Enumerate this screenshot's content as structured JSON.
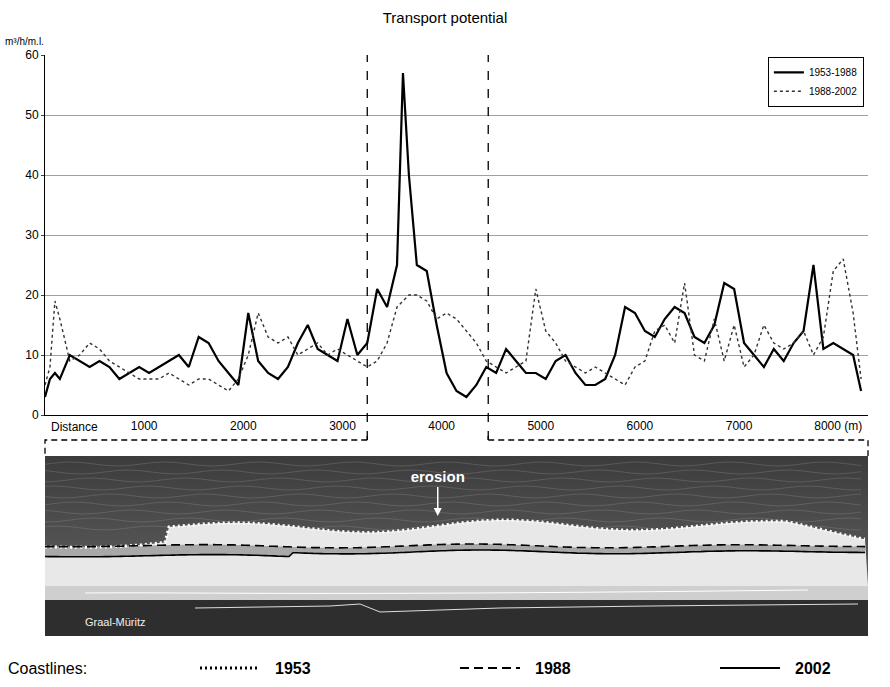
{
  "chart_data": {
    "type": "line",
    "title": "Transport potential",
    "y_label": "m³/h/m.l.",
    "x_label": "Distance",
    "x": [
      0,
      50,
      100,
      150,
      250,
      350,
      450,
      550,
      650,
      750,
      850,
      950,
      1050,
      1150,
      1250,
      1350,
      1450,
      1550,
      1650,
      1750,
      1850,
      1950,
      2050,
      2150,
      2250,
      2350,
      2450,
      2550,
      2650,
      2750,
      2850,
      2950,
      3050,
      3150,
      3250,
      3350,
      3450,
      3550,
      3610,
      3670,
      3750,
      3850,
      3950,
      4050,
      4150,
      4250,
      4350,
      4450,
      4550,
      4650,
      4750,
      4850,
      4950,
      5050,
      5150,
      5250,
      5350,
      5450,
      5550,
      5650,
      5750,
      5850,
      5950,
      6050,
      6150,
      6250,
      6350,
      6450,
      6550,
      6650,
      6750,
      6850,
      6950,
      7050,
      7150,
      7250,
      7350,
      7450,
      7550,
      7650,
      7750,
      7850,
      7950,
      8050,
      8150,
      8230
    ],
    "series": [
      {
        "name": "1953-1988",
        "color": "#000000",
        "line_style": "solid",
        "values": [
          3,
          6,
          7,
          6,
          10,
          9,
          8,
          9,
          8,
          6,
          7,
          8,
          7,
          8,
          9,
          10,
          8,
          13,
          12,
          9,
          7,
          5,
          17,
          9,
          7,
          6,
          8,
          12,
          15,
          11,
          10,
          9,
          16,
          10,
          12,
          21,
          18,
          25,
          57,
          40,
          25,
          24,
          15,
          7,
          4,
          3,
          5,
          8,
          7,
          11,
          9,
          7,
          7,
          6,
          9,
          10,
          7,
          5,
          5,
          6,
          10,
          18,
          17,
          14,
          13,
          16,
          18,
          17,
          13,
          12,
          15,
          22,
          21,
          12,
          10,
          8,
          11,
          9,
          12,
          14,
          25,
          11,
          12,
          11,
          10,
          4
        ]
      },
      {
        "name": "1988-2002",
        "color": "#333333",
        "line_style": "dotted",
        "values": [
          5,
          8,
          19,
          16,
          9,
          10,
          12,
          11,
          9,
          8,
          7,
          6,
          6,
          6,
          7,
          6,
          5,
          6,
          6,
          5,
          4,
          6,
          10,
          17,
          13,
          12,
          13,
          10,
          11,
          12,
          10,
          11,
          10,
          9,
          8,
          9,
          12,
          18,
          19,
          20,
          20,
          19,
          16,
          17,
          16,
          14,
          12,
          9,
          8,
          7,
          8,
          9,
          21,
          14,
          12,
          9,
          8,
          7,
          8,
          7,
          6,
          5,
          8,
          9,
          14,
          15,
          12,
          22,
          10,
          9,
          16,
          9,
          15,
          8,
          10,
          15,
          12,
          11,
          12,
          14,
          10,
          13,
          24,
          26,
          17,
          6
        ]
      }
    ],
    "xlim": [
      0,
      8300
    ],
    "xticks": [
      1000,
      2000,
      3000,
      4000,
      5000,
      6000,
      7000,
      {
        "value": 8000,
        "label": "8000 (m)"
      }
    ],
    "ylim": [
      0,
      60
    ],
    "yticks": [
      0,
      10,
      20,
      30,
      40,
      50,
      60
    ],
    "grid": true,
    "legend": "top right",
    "vlines": [
      3250,
      4470
    ]
  },
  "map": {
    "annotation": "erosion",
    "place": "Graal-Müritz",
    "coastlines": {
      "title": "Coastlines:",
      "items": [
        {
          "label": "1953",
          "line_style": "dotted"
        },
        {
          "label": "1988",
          "line_style": "dashed"
        },
        {
          "label": "2002",
          "line_style": "solid"
        }
      ]
    }
  }
}
